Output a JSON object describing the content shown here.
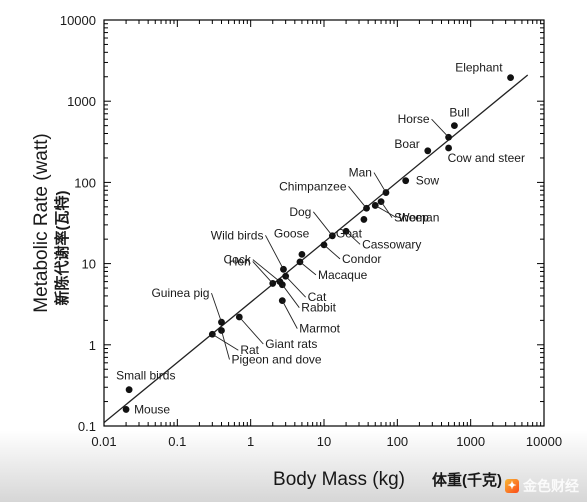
{
  "chart_data": {
    "type": "scatter",
    "xscale": "log",
    "yscale": "log",
    "xlim": [
      0.01,
      10000
    ],
    "ylim": [
      0.1,
      10000
    ],
    "xlabel": "Body Mass (kg)",
    "xlabel_cn": "体重(千克)",
    "ylabel": "Metabolic Rate (watt)",
    "ylabel_cn": "新陈代谢率(瓦特)",
    "xticks": [
      {
        "value": 0.01,
        "label": "0.01"
      },
      {
        "value": 0.1,
        "label": "0.1"
      },
      {
        "value": 1,
        "label": "1"
      },
      {
        "value": 10,
        "label": "10"
      },
      {
        "value": 100,
        "label": "100"
      },
      {
        "value": 1000,
        "label": "1000"
      },
      {
        "value": 10000,
        "label": "10000"
      }
    ],
    "yticks": [
      {
        "value": 0.1,
        "label": "0.1"
      },
      {
        "value": 1,
        "label": "1"
      },
      {
        "value": 10,
        "label": "10"
      },
      {
        "value": 100,
        "label": "100"
      },
      {
        "value": 1000,
        "label": "1000"
      },
      {
        "value": 10000,
        "label": "10000"
      }
    ],
    "fit_line": {
      "x": [
        0.01,
        6000
      ],
      "y": [
        0.11,
        2100
      ]
    },
    "points": [
      {
        "label": "Mouse",
        "x": 0.02,
        "y": 0.16
      },
      {
        "label": "Small birds",
        "x": 0.022,
        "y": 0.28
      },
      {
        "label": "Rat",
        "x": 0.3,
        "y": 1.35
      },
      {
        "label": "Pigeon and dove",
        "x": 0.4,
        "y": 1.5
      },
      {
        "label": "Guinea pig",
        "x": 0.4,
        "y": 1.9
      },
      {
        "label": "Giant rats",
        "x": 0.7,
        "y": 2.2
      },
      {
        "label": "Hen",
        "x": 2.0,
        "y": 5.7
      },
      {
        "label": "Cock",
        "x": 2.5,
        "y": 6.0
      },
      {
        "label": "Wild birds",
        "x": 2.8,
        "y": 8.5
      },
      {
        "label": "Cat",
        "x": 3.0,
        "y": 7.0
      },
      {
        "label": "Rabbit",
        "x": 2.7,
        "y": 5.5
      },
      {
        "label": "Marmot",
        "x": 2.7,
        "y": 3.5
      },
      {
        "label": "Goose",
        "x": 5.0,
        "y": 13
      },
      {
        "label": "Macaque",
        "x": 4.7,
        "y": 10.5
      },
      {
        "label": "Condor",
        "x": 10,
        "y": 17
      },
      {
        "label": "Dog",
        "x": 13,
        "y": 22
      },
      {
        "label": "Cassowary",
        "x": 20,
        "y": 25
      },
      {
        "label": "Chimpanzee",
        "x": 38,
        "y": 48
      },
      {
        "label": "Goat",
        "x": 35,
        "y": 35
      },
      {
        "label": "Woman",
        "x": 50,
        "y": 52
      },
      {
        "label": "Sheep",
        "x": 60,
        "y": 58
      },
      {
        "label": "Man",
        "x": 70,
        "y": 75
      },
      {
        "label": "Sow",
        "x": 130,
        "y": 105
      },
      {
        "label": "Boar",
        "x": 260,
        "y": 245
      },
      {
        "label": "Cow and steer",
        "x": 500,
        "y": 265
      },
      {
        "label": "Horse",
        "x": 500,
        "y": 360
      },
      {
        "label": "Bull",
        "x": 600,
        "y": 500
      },
      {
        "label": "Elephant",
        "x": 3500,
        "y": 1950
      }
    ]
  },
  "watermark": {
    "text": "金色财经",
    "mark": "✦"
  }
}
